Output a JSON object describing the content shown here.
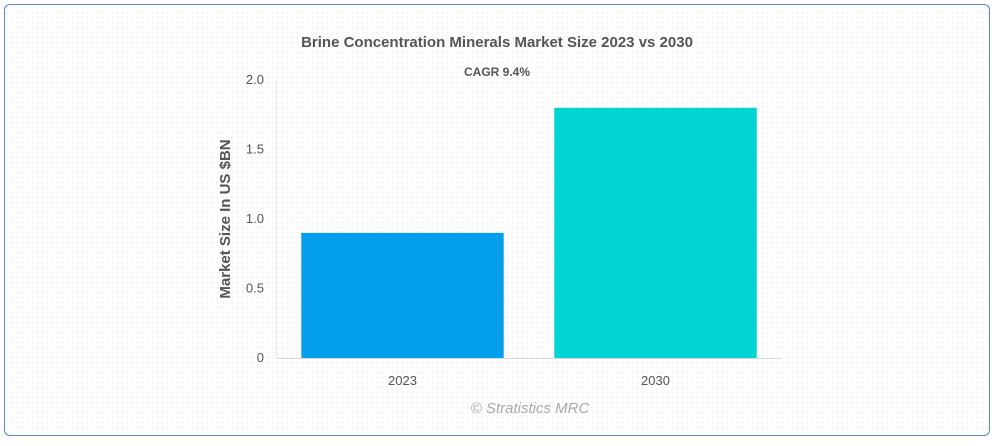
{
  "chart_data": {
    "type": "bar",
    "title": "Brine Concentration Minerals Market Size 2023 vs 2030",
    "subtitle": "CAGR 9.4%",
    "xlabel": "",
    "ylabel": "Market Size In US $BN",
    "categories": [
      "2023",
      "2030"
    ],
    "values": [
      0.9,
      1.8
    ],
    "colors": [
      "#049fec",
      "#00d4d4"
    ],
    "ylim": [
      0,
      2.0
    ],
    "yticks": [
      {
        "value": 0,
        "label": "0"
      },
      {
        "value": 0.5,
        "label": "0.5"
      },
      {
        "value": 1.0,
        "label": "1.0"
      },
      {
        "value": 1.5,
        "label": "1.5"
      },
      {
        "value": 2.0,
        "label": "2.0"
      }
    ],
    "grid": false,
    "legend": "none"
  },
  "credit": "© Stratistics MRC"
}
